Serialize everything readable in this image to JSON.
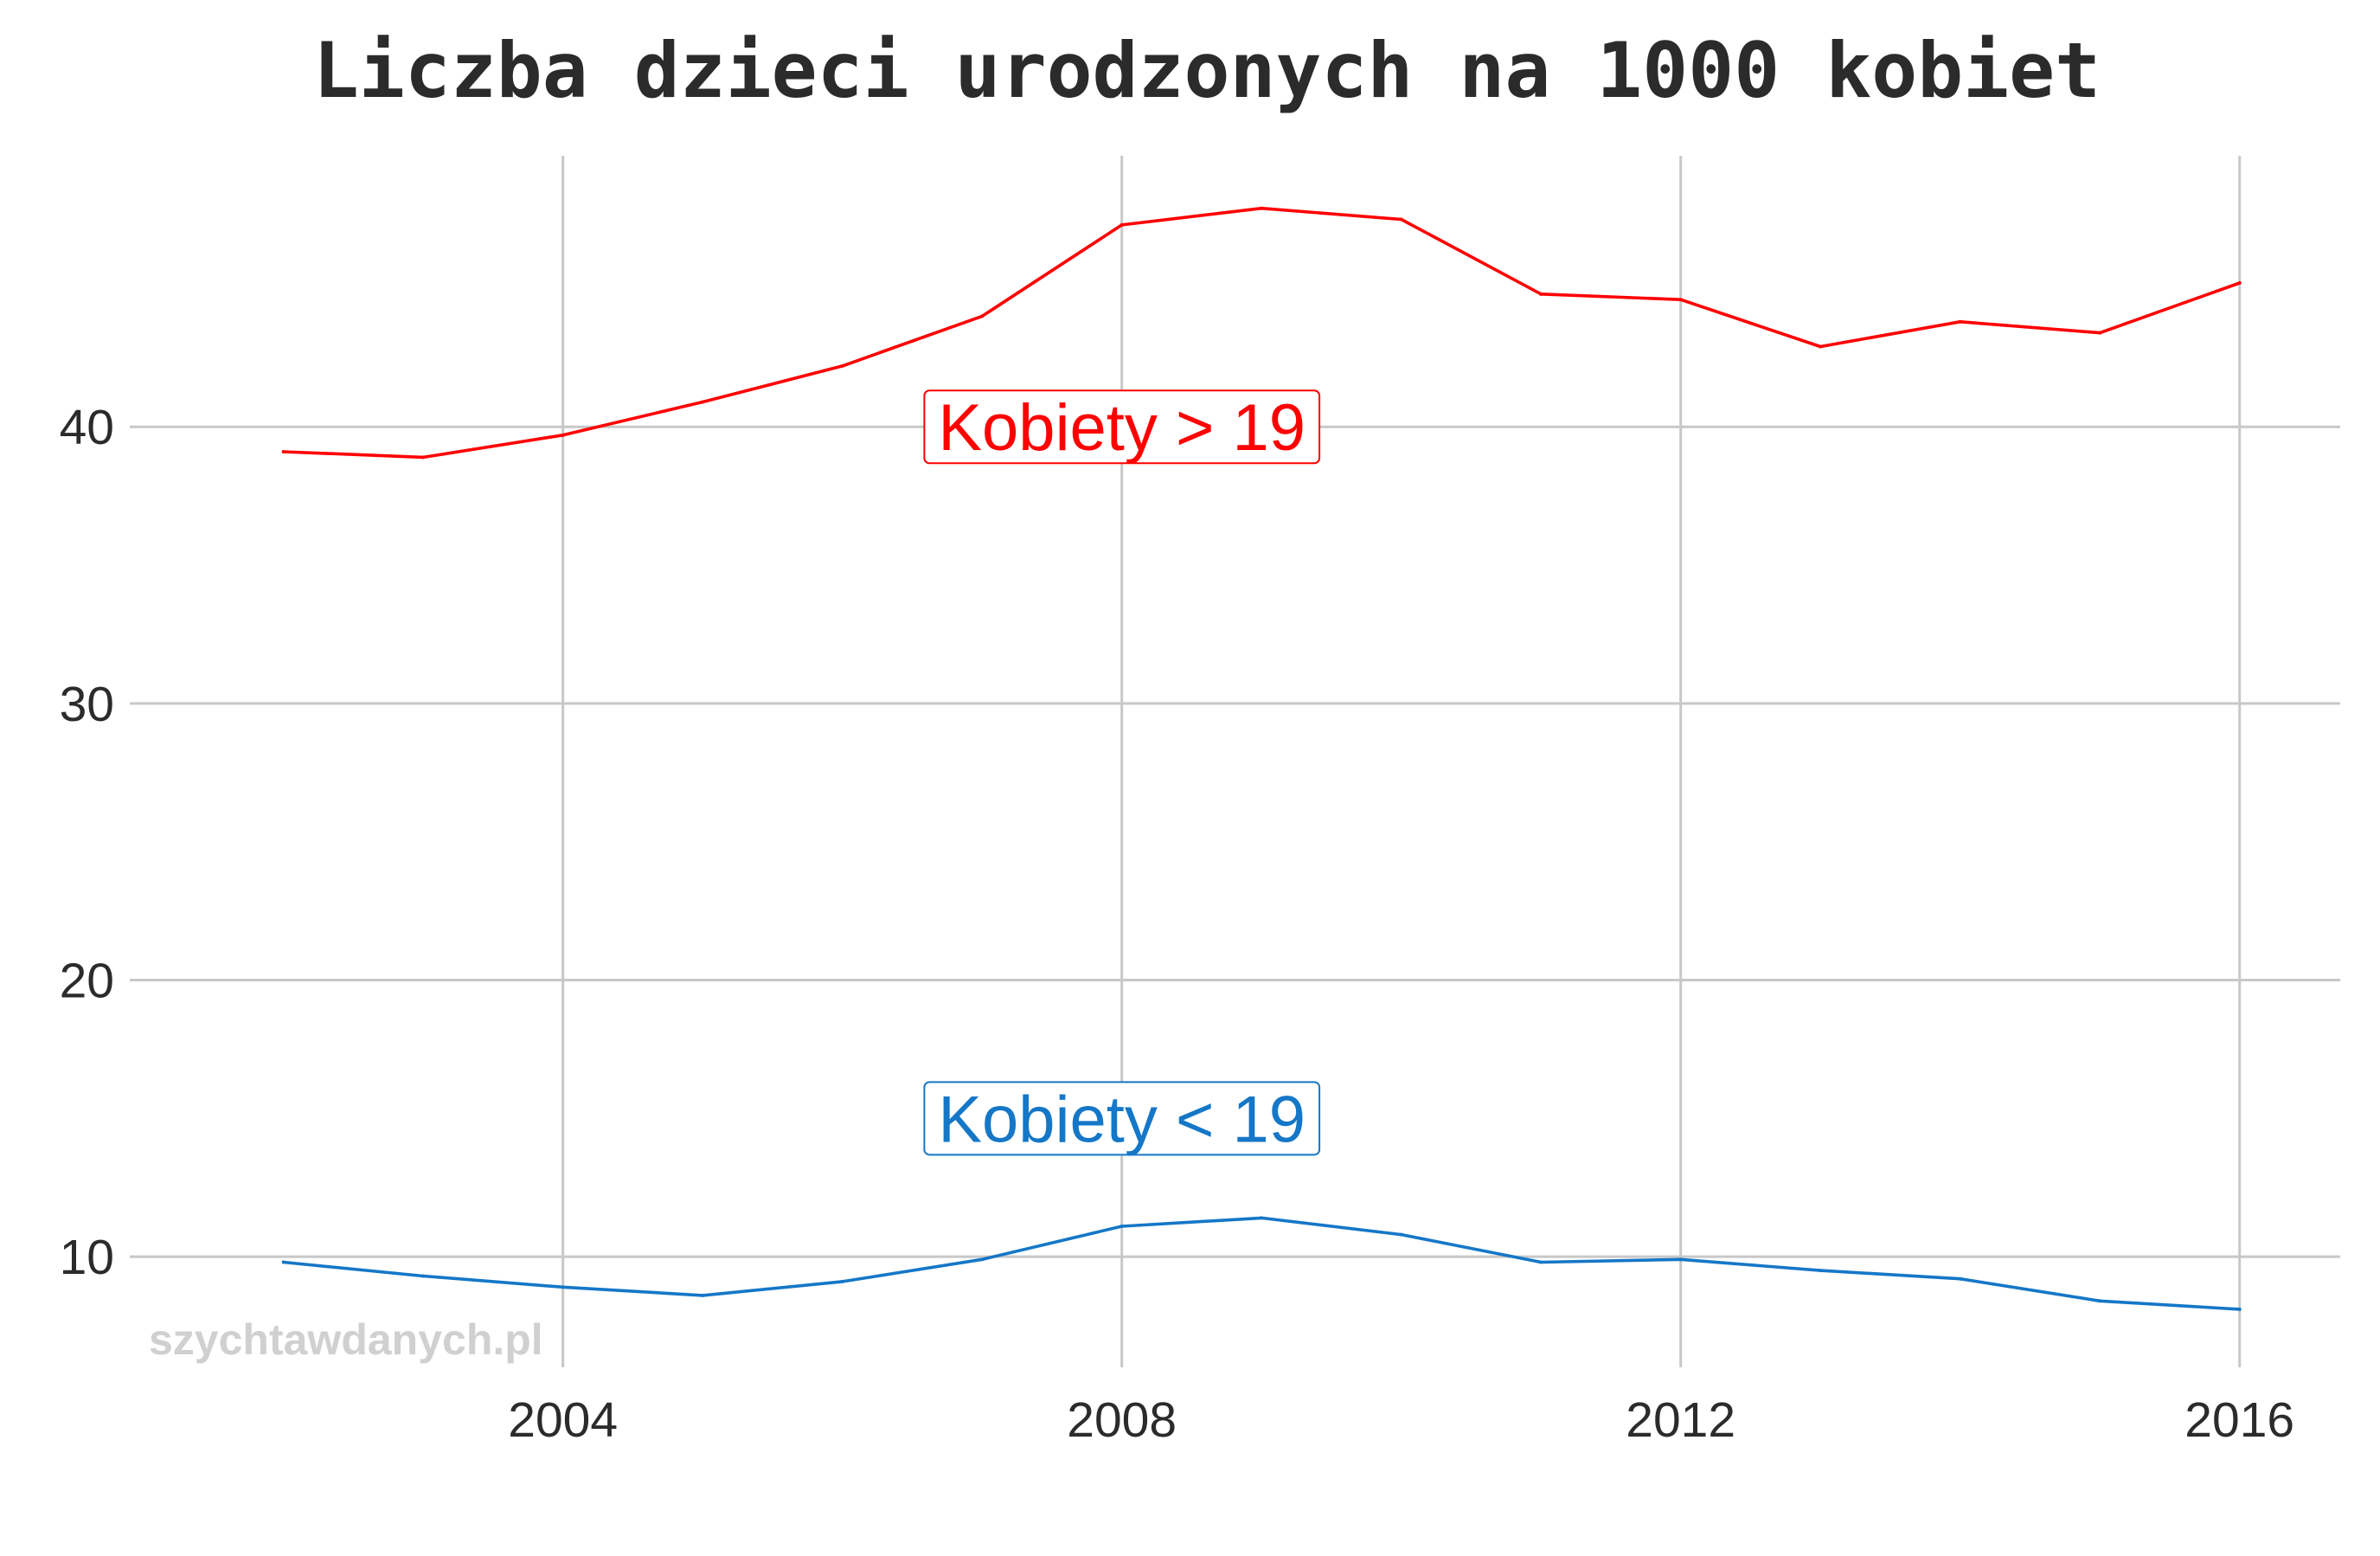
{
  "chart_data": {
    "type": "line",
    "title": "Liczba dzieci urodzonych na 1000 kobiet",
    "xlabel": "",
    "ylabel": "",
    "x": [
      2002,
      2003,
      2004,
      2005,
      2006,
      2007,
      2008,
      2009,
      2010,
      2011,
      2012,
      2013,
      2014,
      2015,
      2016
    ],
    "x_ticks": [
      2004,
      2008,
      2012,
      2016
    ],
    "y_ticks": [
      10,
      20,
      30,
      40
    ],
    "xlim": [
      2000.9,
      2016.72
    ],
    "ylim": [
      6.0,
      49.8
    ],
    "grid": true,
    "legend": "none",
    "series": [
      {
        "name": "Kobiety > 19",
        "color": "#ff0000",
        "values": [
          39.1,
          38.9,
          39.7,
          40.9,
          42.2,
          44.0,
          47.3,
          47.9,
          47.5,
          44.8,
          44.6,
          42.9,
          43.8,
          43.4,
          45.2
        ],
        "label_x": 2008,
        "label_y": 40
      },
      {
        "name": "Kobiety < 19",
        "color": "#1577c7",
        "values": [
          9.8,
          9.3,
          8.9,
          8.6,
          9.1,
          9.9,
          11.1,
          11.4,
          10.8,
          9.8,
          9.9,
          9.5,
          9.2,
          8.4,
          8.1
        ],
        "label_x": 2008,
        "label_y": 15
      }
    ],
    "annotation": "szychtawdanych.pl"
  }
}
